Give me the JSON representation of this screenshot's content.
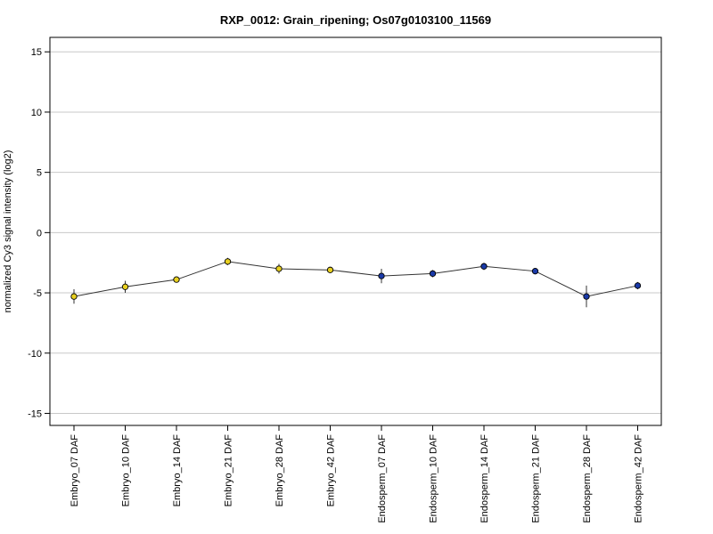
{
  "chart_data": {
    "type": "line",
    "title": "RXP_0012: Grain_ripening; Os07g0103100_11569",
    "xlabel": "",
    "ylabel": "normalized Cy3 signal intensity (log2)",
    "ylim": [
      -16,
      16.2
    ],
    "yticks": [
      -15,
      -10,
      -5,
      0,
      5,
      10,
      15
    ],
    "grid": true,
    "categories": [
      "Embryo_07 DAF",
      "Embryo_10 DAF",
      "Embryo_14 DAF",
      "Embryo_21 DAF",
      "Embryo_28 DAF",
      "Embryo_42 DAF",
      "Endosperm_07 DAF",
      "Endosperm_10 DAF",
      "Endosperm_14 DAF",
      "Endosperm_21 DAF",
      "Endosperm_28 DAF",
      "Endosperm_42 DAF"
    ],
    "values": [
      -5.3,
      -4.5,
      -3.9,
      -2.4,
      -3.0,
      -3.1,
      -3.6,
      -3.4,
      -2.8,
      -3.2,
      -5.3,
      -4.4
    ],
    "errors": [
      0.6,
      0.5,
      0.2,
      0.3,
      0.4,
      0.2,
      0.6,
      0.3,
      0.3,
      0.2,
      0.9,
      0.3
    ],
    "point_colors": [
      "#e8d020",
      "#e8d020",
      "#e8d020",
      "#e8d020",
      "#e8d020",
      "#e8d020",
      "#1a3aa8",
      "#1a3aa8",
      "#1a3aa8",
      "#1a3aa8",
      "#1a3aa8",
      "#1a3aa8"
    ],
    "line_color": "#333333",
    "grid_color": "#c8c8c8"
  }
}
